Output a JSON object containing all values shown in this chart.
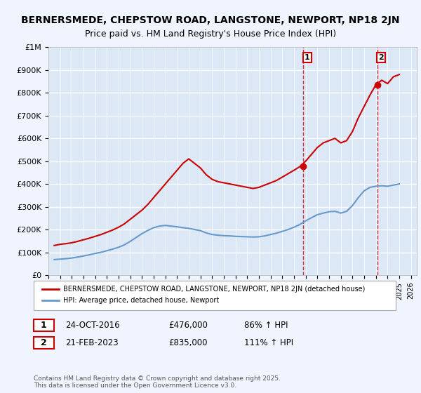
{
  "title": "BERNERSMEDE, CHEPSTOW ROAD, LANGSTONE, NEWPORT, NP18 2JN",
  "subtitle": "Price paid vs. HM Land Registry's House Price Index (HPI)",
  "background_color": "#f0f4ff",
  "plot_bg_color": "#dce8f5",
  "grid_color": "#ffffff",
  "red_line_color": "#cc0000",
  "blue_line_color": "#6699cc",
  "vline_color": "#cc0000",
  "ylim": [
    0,
    1000000
  ],
  "yticks": [
    0,
    100000,
    200000,
    300000,
    400000,
    500000,
    600000,
    700000,
    800000,
    900000,
    1000000
  ],
  "ytick_labels": [
    "£0",
    "£100K",
    "£200K",
    "£300K",
    "£400K",
    "£500K",
    "£600K",
    "£700K",
    "£800K",
    "£900K",
    "£1M"
  ],
  "xlim_start": 1995.0,
  "xlim_end": 2026.5,
  "xtick_years": [
    1995,
    1996,
    1997,
    1998,
    1999,
    2000,
    2001,
    2002,
    2003,
    2004,
    2005,
    2006,
    2007,
    2008,
    2009,
    2010,
    2011,
    2012,
    2013,
    2014,
    2015,
    2016,
    2017,
    2018,
    2019,
    2020,
    2021,
    2022,
    2023,
    2024,
    2025,
    2026
  ],
  "red_x": [
    1995.5,
    1996.0,
    1996.5,
    1997.0,
    1997.5,
    1998.0,
    1998.5,
    1999.0,
    1999.5,
    2000.0,
    2000.5,
    2001.0,
    2001.5,
    2002.0,
    2002.5,
    2003.0,
    2003.5,
    2004.0,
    2004.5,
    2005.0,
    2005.5,
    2006.0,
    2006.5,
    2007.0,
    2007.5,
    2008.0,
    2008.5,
    2009.0,
    2009.5,
    2010.0,
    2010.5,
    2011.0,
    2011.5,
    2012.0,
    2012.5,
    2013.0,
    2013.5,
    2014.0,
    2014.5,
    2015.0,
    2015.5,
    2016.0,
    2016.5,
    2017.0,
    2017.5,
    2018.0,
    2018.5,
    2019.0,
    2019.5,
    2020.0,
    2020.5,
    2021.0,
    2021.5,
    2022.0,
    2022.5,
    2023.0,
    2023.5,
    2024.0,
    2024.5,
    2025.0
  ],
  "red_y": [
    130000,
    135000,
    138000,
    142000,
    148000,
    155000,
    162000,
    170000,
    178000,
    188000,
    198000,
    210000,
    225000,
    245000,
    265000,
    285000,
    310000,
    340000,
    370000,
    400000,
    430000,
    460000,
    490000,
    510000,
    490000,
    470000,
    440000,
    420000,
    410000,
    405000,
    400000,
    395000,
    390000,
    385000,
    380000,
    385000,
    395000,
    405000,
    415000,
    430000,
    445000,
    460000,
    476000,
    500000,
    530000,
    560000,
    580000,
    590000,
    600000,
    580000,
    590000,
    630000,
    690000,
    740000,
    790000,
    835000,
    855000,
    840000,
    870000,
    880000
  ],
  "blue_x": [
    1995.5,
    1996.0,
    1996.5,
    1997.0,
    1997.5,
    1998.0,
    1998.5,
    1999.0,
    1999.5,
    2000.0,
    2000.5,
    2001.0,
    2001.5,
    2002.0,
    2002.5,
    2003.0,
    2003.5,
    2004.0,
    2004.5,
    2005.0,
    2005.5,
    2006.0,
    2006.5,
    2007.0,
    2007.5,
    2008.0,
    2008.5,
    2009.0,
    2009.5,
    2010.0,
    2010.5,
    2011.0,
    2011.5,
    2012.0,
    2012.5,
    2013.0,
    2013.5,
    2014.0,
    2014.5,
    2015.0,
    2015.5,
    2016.0,
    2016.5,
    2017.0,
    2017.5,
    2018.0,
    2018.5,
    2019.0,
    2019.5,
    2020.0,
    2020.5,
    2021.0,
    2021.5,
    2022.0,
    2022.5,
    2023.0,
    2023.5,
    2024.0,
    2024.5,
    2025.0
  ],
  "blue_y": [
    68000,
    70000,
    72000,
    75000,
    79000,
    84000,
    89000,
    95000,
    100000,
    107000,
    114000,
    122000,
    133000,
    148000,
    165000,
    182000,
    196000,
    208000,
    215000,
    218000,
    215000,
    212000,
    208000,
    205000,
    200000,
    195000,
    185000,
    178000,
    175000,
    173000,
    172000,
    170000,
    169000,
    168000,
    167000,
    168000,
    172000,
    178000,
    184000,
    192000,
    200000,
    210000,
    222000,
    238000,
    252000,
    265000,
    272000,
    278000,
    280000,
    272000,
    280000,
    305000,
    340000,
    370000,
    385000,
    390000,
    392000,
    390000,
    395000,
    400000
  ],
  "vline1_x": 2016.81,
  "vline2_x": 2023.13,
  "marker1_x": 2016.81,
  "marker1_y": 476000,
  "marker2_x": 2023.13,
  "marker2_y": 835000,
  "legend_red_label": "BERNERSMEDE, CHEPSTOW ROAD, LANGSTONE, NEWPORT, NP18 2JN (detached house)",
  "legend_blue_label": "HPI: Average price, detached house, Newport",
  "annotation1_num": "1",
  "annotation1_date": "24-OCT-2016",
  "annotation1_price": "£476,000",
  "annotation1_hpi": "86% ↑ HPI",
  "annotation2_num": "2",
  "annotation2_date": "21-FEB-2023",
  "annotation2_price": "£835,000",
  "annotation2_hpi": "111% ↑ HPI",
  "footer": "Contains HM Land Registry data © Crown copyright and database right 2025.\nThis data is licensed under the Open Government Licence v3.0.",
  "title_fontsize": 10,
  "subtitle_fontsize": 9
}
